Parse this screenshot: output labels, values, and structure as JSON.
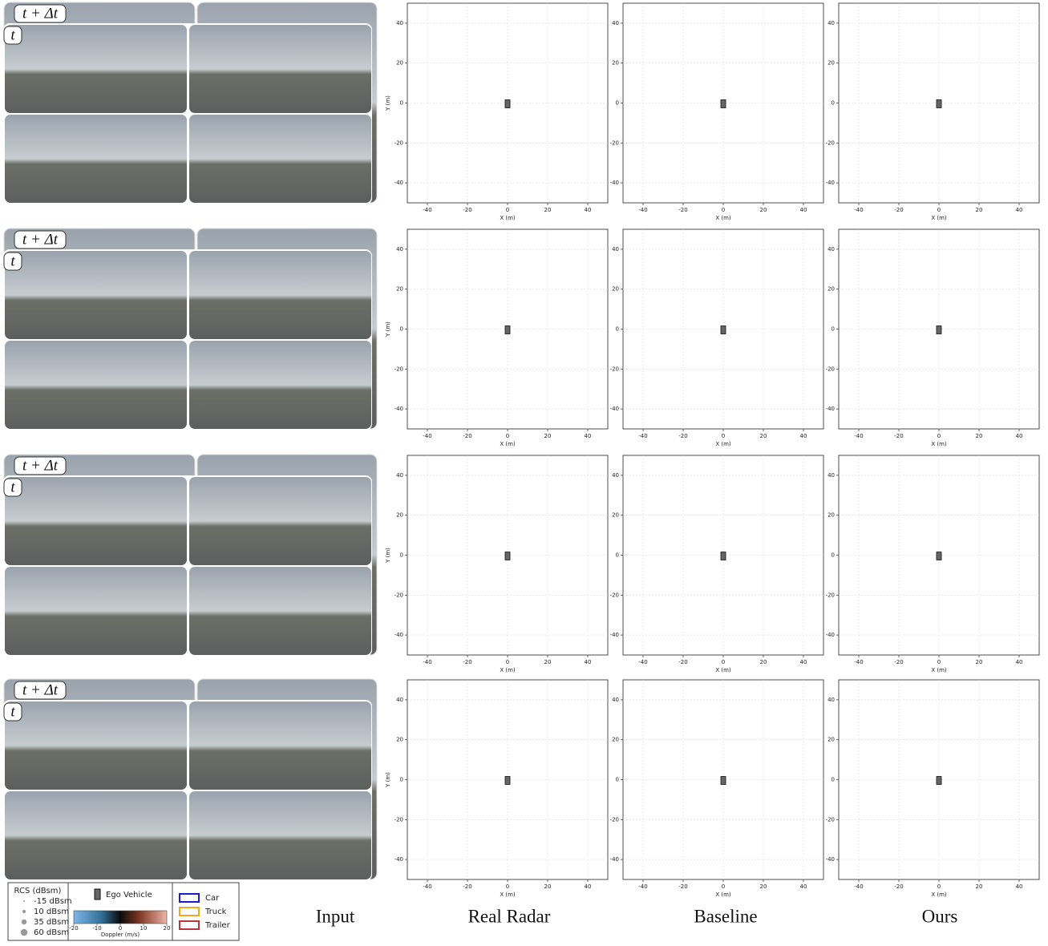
{
  "frame_labels": {
    "next": "t + Δt",
    "current": "t"
  },
  "columns": [
    "Input",
    "Real Radar",
    "Baseline",
    "Ours"
  ],
  "plot": {
    "xlabel": "X (m)",
    "ylabel": "Y (m)",
    "xlim": [
      -50,
      50
    ],
    "ylim": [
      -50,
      50
    ],
    "xticks": [
      -40,
      -20,
      0,
      20,
      40
    ],
    "yticks": [
      -40,
      -20,
      0,
      20,
      40
    ],
    "grid": true
  },
  "legend": {
    "rcs": {
      "title": "RCS (dBsm)",
      "entries": [
        "-15 dBsm",
        "10 dBsm",
        "35 dBsm",
        "60 dBsm"
      ]
    },
    "ego": "Ego Vehicle",
    "doppler": {
      "label": "Doppler (m/s)",
      "lim": [
        -20,
        20
      ],
      "ticks": [
        -20,
        -10,
        0,
        10,
        20
      ]
    },
    "classes": [
      {
        "name": "Car",
        "color": "#1c1cc8"
      },
      {
        "name": "Truck",
        "color": "#f2a81d"
      },
      {
        "name": "Trailer",
        "color": "#b5383a"
      }
    ]
  }
}
